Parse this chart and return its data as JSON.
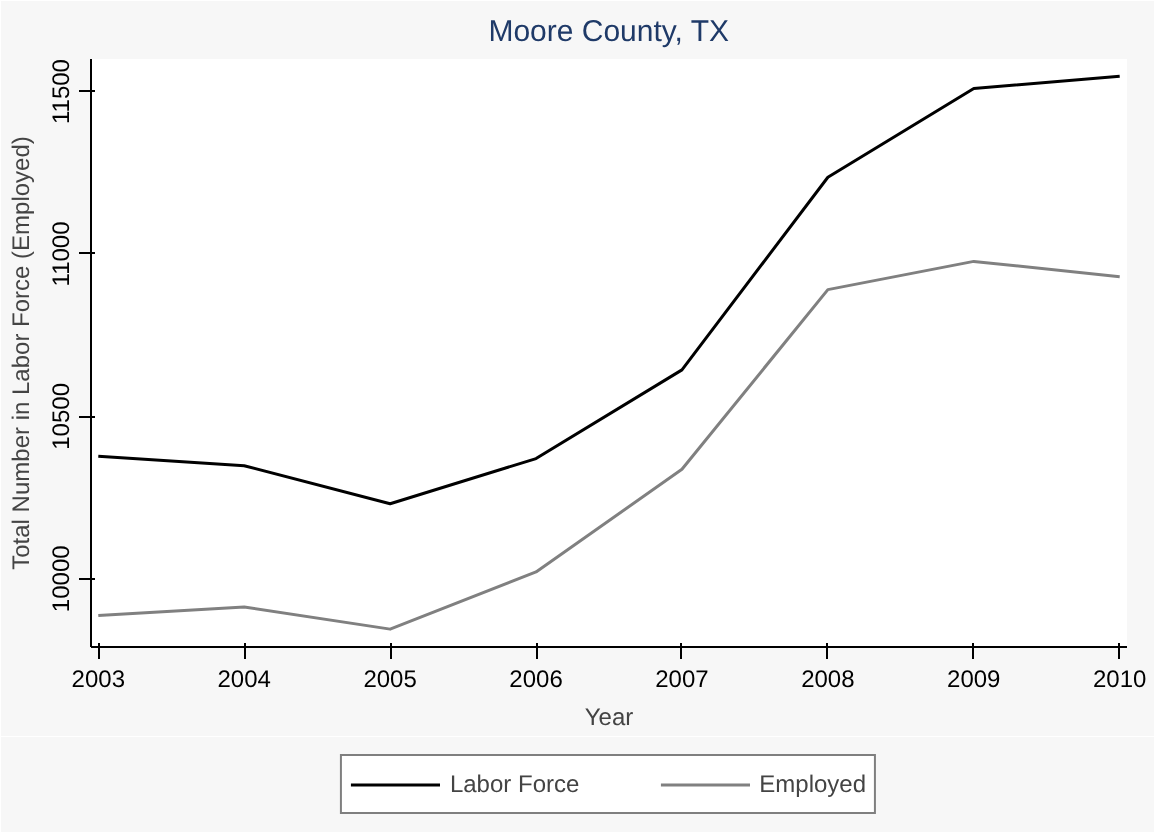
{
  "chart_data": {
    "type": "line",
    "title": "Moore County, TX",
    "xlabel": "Year",
    "ylabel": "Total Number in Labor Force (Employed)",
    "x": [
      2003,
      2004,
      2005,
      2006,
      2007,
      2008,
      2009,
      2010
    ],
    "series": [
      {
        "name": "Labor Force",
        "color": "#000000",
        "values": [
          10377,
          10348,
          10231,
          10370,
          10643,
          11236,
          11509,
          11547
        ]
      },
      {
        "name": "Employed",
        "color": "#808080",
        "values": [
          9887,
          9913,
          9845,
          10021,
          10337,
          10890,
          10977,
          10930
        ]
      }
    ],
    "xlim": [
      2002.95,
      2010.05
    ],
    "ylim": [
      9790,
      11600
    ],
    "xticks": [
      2003,
      2004,
      2005,
      2006,
      2007,
      2008,
      2009,
      2010
    ],
    "yticks": [
      10000,
      10500,
      11000,
      11500
    ],
    "grid": false,
    "legend": "bottom",
    "marker": "none",
    "line_style": "solid"
  }
}
